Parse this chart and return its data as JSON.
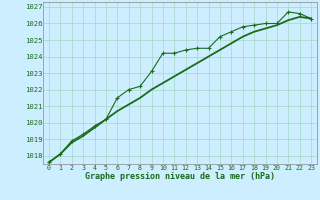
{
  "title": "Graphe pression niveau de la mer (hPa)",
  "ylim": [
    1017.5,
    1027.3
  ],
  "yticks": [
    1018,
    1019,
    1020,
    1021,
    1022,
    1023,
    1024,
    1025,
    1026,
    1027
  ],
  "xlim": [
    -0.5,
    23.5
  ],
  "bg_color": "#cceeff",
  "grid_color": "#aaddcc",
  "line_color": "#1a6b1a",
  "line1_x": [
    0,
    1,
    2,
    3,
    4,
    5,
    6,
    7,
    8,
    9,
    10,
    11,
    12,
    13,
    14,
    15,
    16,
    17,
    18,
    19,
    20,
    21,
    22,
    23
  ],
  "line1_y": [
    1017.6,
    1018.1,
    1018.9,
    1019.3,
    1019.8,
    1020.2,
    1021.5,
    1022.0,
    1022.2,
    1023.1,
    1024.2,
    1024.2,
    1024.4,
    1024.5,
    1024.5,
    1025.2,
    1025.5,
    1025.8,
    1025.9,
    1026.0,
    1026.0,
    1026.7,
    1026.6,
    1026.3
  ],
  "line2_x": [
    0,
    1,
    2,
    3,
    4,
    5,
    6,
    7,
    8,
    9,
    10,
    11,
    12,
    13,
    14,
    15,
    16,
    17,
    18,
    19,
    20,
    21,
    22,
    23
  ],
  "line2_y": [
    1017.6,
    1018.1,
    1018.8,
    1019.2,
    1019.7,
    1020.2,
    1020.7,
    1021.1,
    1021.5,
    1022.0,
    1022.4,
    1022.8,
    1023.2,
    1023.6,
    1024.0,
    1024.4,
    1024.8,
    1025.2,
    1025.5,
    1025.7,
    1025.9,
    1026.2,
    1026.4,
    1026.3
  ],
  "figsize": [
    3.2,
    2.0
  ],
  "dpi": 100
}
